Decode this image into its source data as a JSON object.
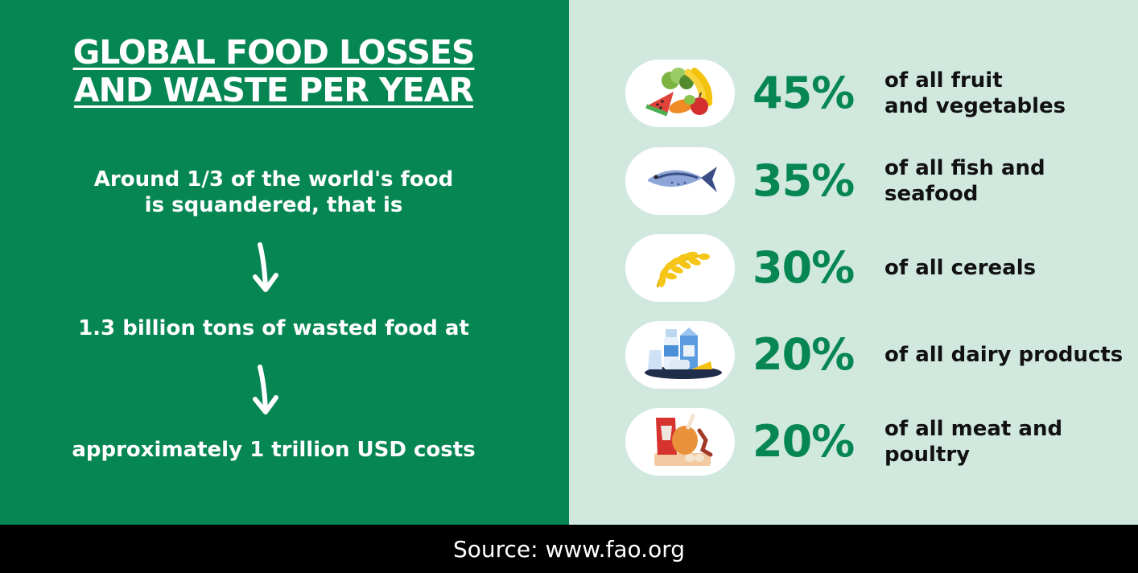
{
  "title": {
    "line1": "GLOBAL FOOD LOSSES",
    "line2": "AND WASTE PER YEAR"
  },
  "left": {
    "intro_line1": "Around 1/3 of the world's food",
    "intro_line2": "is squandered, that is",
    "amount": "1.3 billion tons of wasted food at",
    "cost": "approximately 1 trillion USD costs"
  },
  "categories": [
    {
      "percent": "45%",
      "line1": "of all fruit",
      "line2": "and vegetables",
      "icon": "fruit-vegetables-icon"
    },
    {
      "percent": "35%",
      "line1": "of all fish and",
      "line2": "seafood",
      "icon": "fish-icon"
    },
    {
      "percent": "30%",
      "line1": "of all cereals",
      "line2": "",
      "icon": "wheat-icon"
    },
    {
      "percent": "20%",
      "line1": "of all dairy products",
      "line2": "",
      "icon": "dairy-icon"
    },
    {
      "percent": "20%",
      "line1": "of all meat and",
      "line2": "poultry",
      "icon": "meat-poultry-icon"
    }
  ],
  "footer": {
    "source": "Source: www.fao.org"
  },
  "colors": {
    "green": "#068653",
    "light_green": "#d0e8de",
    "footer_bg": "#000000"
  }
}
